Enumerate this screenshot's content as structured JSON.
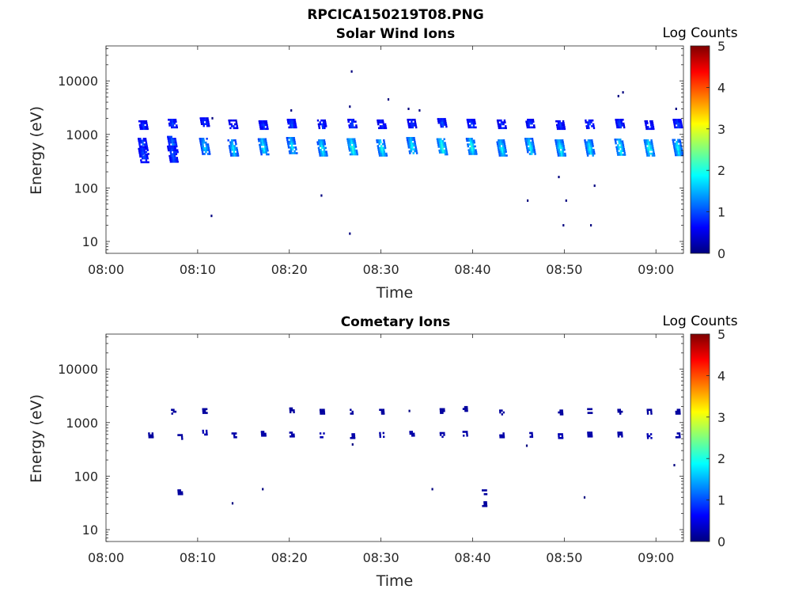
{
  "figure_title": "RPCICA150219T08.PNG",
  "colors": {
    "colormap": [
      "#00007f",
      "#0000ff",
      "#007fff",
      "#00ffff",
      "#7fff7f",
      "#ffff00",
      "#ff7f00",
      "#ff0000",
      "#7f0000"
    ],
    "axis": "#262626"
  },
  "chart_data": [
    {
      "type": "heatmap",
      "title": "Solar Wind Ions",
      "xlabel": "Time",
      "ylabel": "Energy (eV)",
      "x_tick_labels": [
        "08:00",
        "08:10",
        "08:20",
        "08:30",
        "08:40",
        "08:50",
        "09:00"
      ],
      "x_tick_minutes": [
        0,
        10,
        20,
        30,
        40,
        50,
        60
      ],
      "xlim_minutes": [
        0,
        63
      ],
      "y_scale": "log",
      "ylim": [
        6,
        45000
      ],
      "y_tick_labels": [
        "10",
        "100",
        "1000",
        "10000"
      ],
      "y_tick_values": [
        10,
        100,
        1000,
        10000
      ],
      "colorbar": {
        "label": "Log Counts",
        "range": [
          0,
          5
        ],
        "tick_labels": [
          "0",
          "1",
          "2",
          "3",
          "4",
          "5"
        ]
      },
      "clusters": [
        {
          "t": 4.1,
          "e": [
            1500,
            600,
            420
          ],
          "level": [
            0.8,
            1.0,
            0.9
          ]
        },
        {
          "t": 7.3,
          "e": [
            1600,
            650,
            430
          ],
          "level": [
            0.9,
            1.2,
            1.0
          ]
        },
        {
          "t": 10.8,
          "e": [
            1700,
            600
          ],
          "level": [
            0.8,
            1.6
          ]
        },
        {
          "t": 13.9,
          "e": [
            1550,
            560
          ],
          "level": [
            0.7,
            1.7
          ]
        },
        {
          "t": 17.2,
          "e": [
            1500,
            590
          ],
          "level": [
            0.8,
            1.8
          ]
        },
        {
          "t": 20.3,
          "e": [
            1600,
            620
          ],
          "level": [
            0.9,
            1.7
          ]
        },
        {
          "t": 23.6,
          "e": [
            1550,
            560
          ],
          "level": [
            0.8,
            1.8
          ]
        },
        {
          "t": 26.9,
          "e": [
            1600,
            590
          ],
          "level": [
            0.9,
            2.0
          ]
        },
        {
          "t": 30.1,
          "e": [
            1550,
            560
          ],
          "level": [
            0.8,
            1.9
          ]
        },
        {
          "t": 33.4,
          "e": [
            1600,
            620
          ],
          "level": [
            0.8,
            1.8
          ]
        },
        {
          "t": 36.7,
          "e": [
            1650,
            590
          ],
          "level": [
            0.9,
            2.0
          ]
        },
        {
          "t": 39.9,
          "e": [
            1600,
            600
          ],
          "level": [
            0.9,
            1.9
          ]
        },
        {
          "t": 43.2,
          "e": [
            1550,
            560
          ],
          "level": [
            0.8,
            1.8
          ]
        },
        {
          "t": 46.3,
          "e": [
            1600,
            600
          ],
          "level": [
            0.8,
            1.8
          ]
        },
        {
          "t": 49.6,
          "e": [
            1500,
            560
          ],
          "level": [
            0.8,
            1.9
          ]
        },
        {
          "t": 52.8,
          "e": [
            1550,
            560
          ],
          "level": [
            0.9,
            1.8
          ]
        },
        {
          "t": 56.1,
          "e": [
            1600,
            580
          ],
          "level": [
            0.9,
            1.9
          ]
        },
        {
          "t": 59.3,
          "e": [
            1500,
            560
          ],
          "level": [
            0.8,
            2.0
          ]
        },
        {
          "t": 62.4,
          "e": [
            1600,
            570
          ],
          "level": [
            0.9,
            1.8
          ]
        }
      ],
      "isolated": [
        {
          "t": 11.5,
          "e": 30
        },
        {
          "t": 23.5,
          "e": 72
        },
        {
          "t": 26.6,
          "e": 14
        },
        {
          "t": 26.8,
          "e": 15000
        },
        {
          "t": 26.6,
          "e": 3300
        },
        {
          "t": 30.8,
          "e": 4500
        },
        {
          "t": 33.0,
          "e": 3000
        },
        {
          "t": 34.2,
          "e": 2800
        },
        {
          "t": 20.2,
          "e": 2800
        },
        {
          "t": 46.0,
          "e": 58
        },
        {
          "t": 49.4,
          "e": 160
        },
        {
          "t": 49.9,
          "e": 20
        },
        {
          "t": 50.2,
          "e": 58
        },
        {
          "t": 52.9,
          "e": 20
        },
        {
          "t": 53.3,
          "e": 110
        },
        {
          "t": 55.9,
          "e": 5200
        },
        {
          "t": 56.4,
          "e": 6100
        },
        {
          "t": 62.2,
          "e": 3000
        },
        {
          "t": 11.6,
          "e": 2000
        }
      ]
    },
    {
      "type": "heatmap",
      "title": "Cometary Ions",
      "xlabel": "Time",
      "ylabel": "Energy (eV)",
      "x_tick_labels": [
        "08:00",
        "08:10",
        "08:20",
        "08:30",
        "08:40",
        "08:50",
        "09:00"
      ],
      "x_tick_minutes": [
        0,
        10,
        20,
        30,
        40,
        50,
        60
      ],
      "xlim_minutes": [
        0,
        63
      ],
      "y_scale": "log",
      "ylim": [
        6,
        45000
      ],
      "y_tick_labels": [
        "10",
        "100",
        "1000",
        "10000"
      ],
      "y_tick_values": [
        10,
        100,
        1000,
        10000
      ],
      "colorbar": {
        "label": "Log Counts",
        "range": [
          0,
          5
        ],
        "tick_labels": [
          "0",
          "1",
          "2",
          "3",
          "4",
          "5"
        ]
      },
      "clusters": [
        {
          "t": 4.9,
          "e": [
            580
          ],
          "level": [
            0.15
          ]
        },
        {
          "t": 7.4,
          "e": [
            1600
          ],
          "level": [
            0.15
          ]
        },
        {
          "t": 8.1,
          "e": [
            540,
            50
          ],
          "level": [
            0.15,
            0.15
          ]
        },
        {
          "t": 10.8,
          "e": [
            1650,
            650
          ],
          "level": [
            0.15,
            0.25
          ]
        },
        {
          "t": 14.0,
          "e": [
            580
          ],
          "level": [
            0.2
          ]
        },
        {
          "t": 17.2,
          "e": [
            620
          ],
          "level": [
            0.2
          ]
        },
        {
          "t": 20.3,
          "e": [
            1700,
            600
          ],
          "level": [
            0.15,
            0.2
          ]
        },
        {
          "t": 23.6,
          "e": [
            1600,
            580
          ],
          "level": [
            0.15,
            0.25
          ]
        },
        {
          "t": 26.9,
          "e": [
            1600,
            560
          ],
          "level": [
            0.15,
            0.2
          ]
        },
        {
          "t": 30.1,
          "e": [
            1600,
            590
          ],
          "level": [
            0.15,
            0.2
          ]
        },
        {
          "t": 33.4,
          "e": [
            620
          ],
          "level": [
            0.2
          ]
        },
        {
          "t": 36.7,
          "e": [
            1650,
            590
          ],
          "level": [
            0.15,
            0.2
          ]
        },
        {
          "t": 39.2,
          "e": [
            1800,
            620
          ],
          "level": [
            0.15,
            0.2
          ]
        },
        {
          "t": 41.3,
          "e": [
            50,
            30
          ],
          "level": [
            0.15,
            0.15
          ]
        },
        {
          "t": 43.2,
          "e": [
            1550,
            580
          ],
          "level": [
            0.15,
            0.2
          ]
        },
        {
          "t": 46.3,
          "e": [
            590
          ],
          "level": [
            0.2
          ]
        },
        {
          "t": 49.6,
          "e": [
            1550,
            560
          ],
          "level": [
            0.15,
            0.25
          ]
        },
        {
          "t": 52.8,
          "e": [
            1650,
            600
          ],
          "level": [
            0.15,
            0.2
          ]
        },
        {
          "t": 56.1,
          "e": [
            1600,
            600
          ],
          "level": [
            0.15,
            0.2
          ]
        },
        {
          "t": 59.3,
          "e": [
            1600,
            560
          ],
          "level": [
            0.15,
            0.25
          ]
        },
        {
          "t": 62.4,
          "e": [
            1600,
            580
          ],
          "level": [
            0.15,
            0.2
          ]
        }
      ],
      "isolated": [
        {
          "t": 13.8,
          "e": 31
        },
        {
          "t": 17.1,
          "e": 57
        },
        {
          "t": 26.9,
          "e": 390
        },
        {
          "t": 35.6,
          "e": 57
        },
        {
          "t": 45.9,
          "e": 370
        },
        {
          "t": 52.2,
          "e": 40
        },
        {
          "t": 62.0,
          "e": 160
        },
        {
          "t": 33.1,
          "e": 1650
        }
      ]
    }
  ]
}
